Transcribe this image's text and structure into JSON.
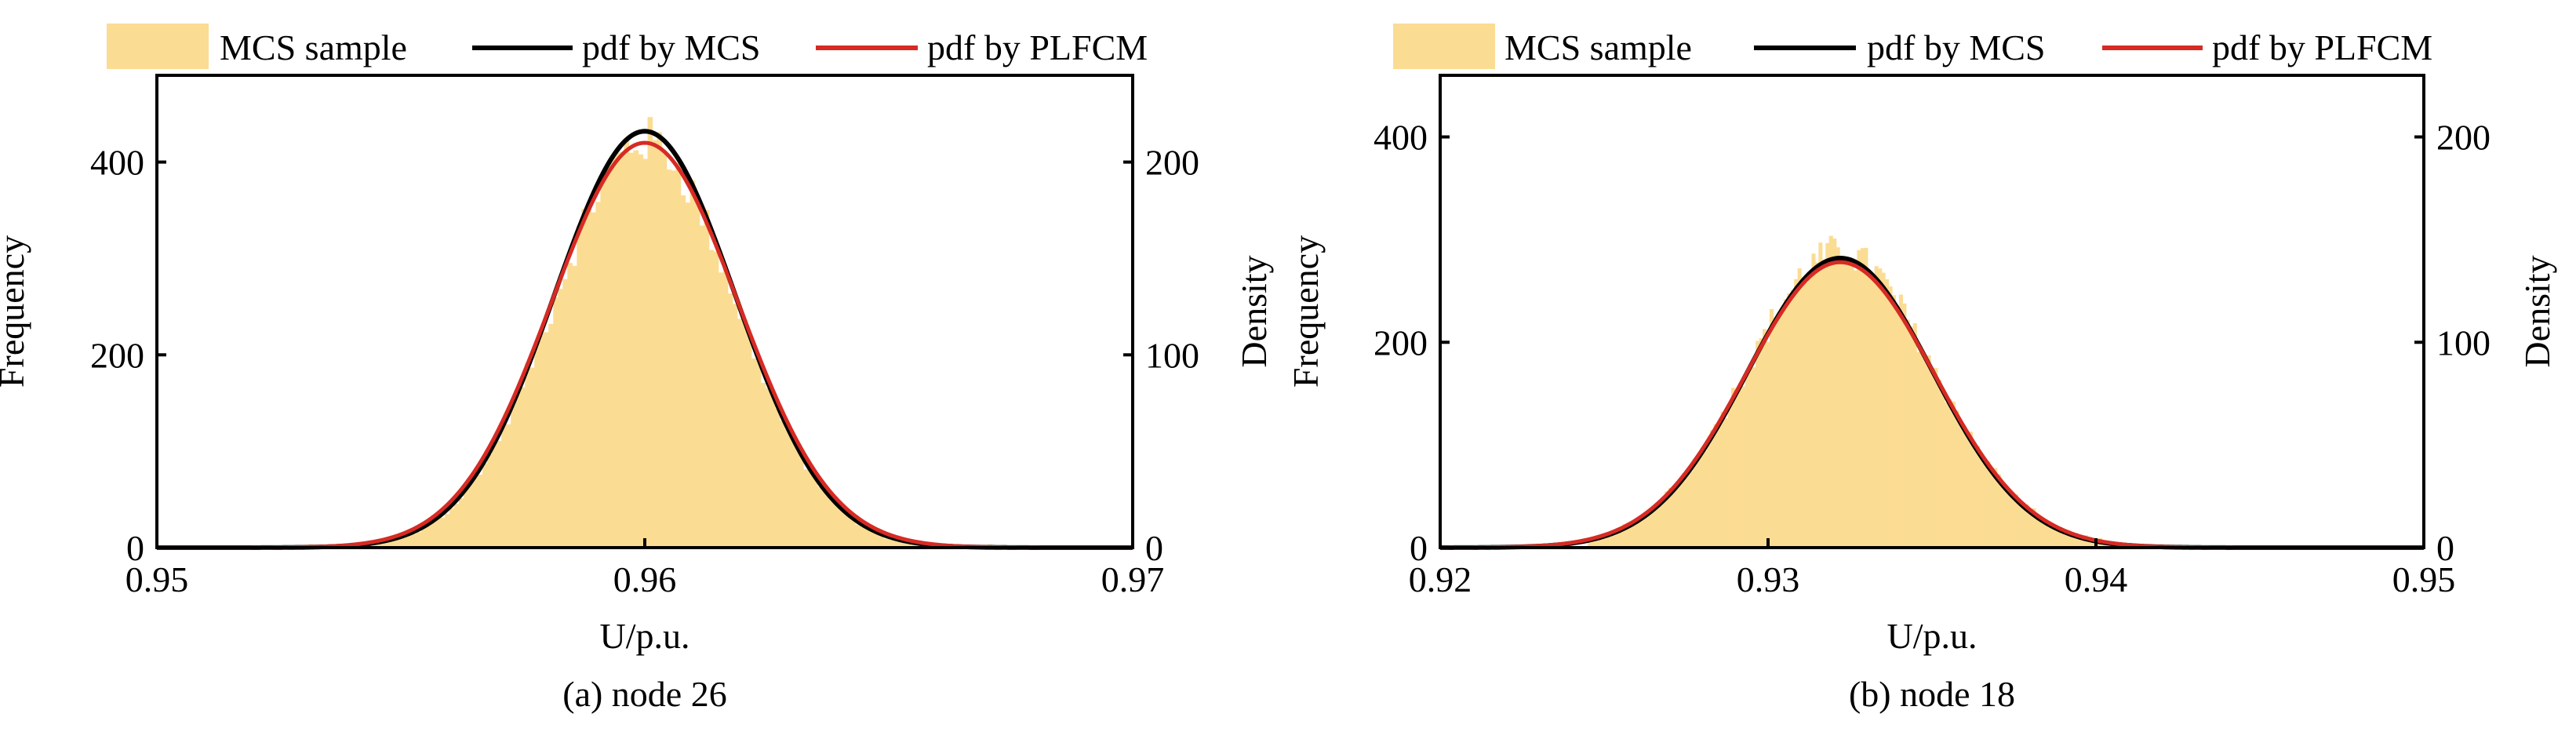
{
  "colors": {
    "hist_fill": "#fbdc93",
    "pdf_mcs": "#000000",
    "pdf_plfcm": "#d62b24",
    "axis": "#000000"
  },
  "legend": {
    "sample_label": "MCS sample",
    "mcs_label": "pdf by MCS",
    "plfcm_label": "pdf by PLFCM"
  },
  "chart_data": [
    {
      "type": "bar",
      "caption": "(a) node 26",
      "xlabel": "U/p.u.",
      "ylabel": "Frequency",
      "y2label": "Density",
      "xlim": [
        0.95,
        0.97
      ],
      "xticks": [
        0.95,
        0.96,
        0.97
      ],
      "xtick_labels": [
        "0.95",
        "0.96",
        "0.97"
      ],
      "ylim": [
        0,
        490
      ],
      "yticks": [
        0,
        200,
        400
      ],
      "ytick_labels": [
        "0",
        "200",
        "400"
      ],
      "y2lim": [
        0,
        245
      ],
      "y2ticks": [
        0,
        100,
        200
      ],
      "y2tick_labels": [
        "0",
        "100",
        "200"
      ],
      "histogram": {
        "min": 0.953,
        "max": 0.9675,
        "bins": 150,
        "peak_frequency": 440,
        "mean": 0.96,
        "std": 0.00185
      },
      "series": [
        {
          "name": "pdf by MCS",
          "mean": 0.96,
          "std": 0.001855,
          "peak_density": 216
        },
        {
          "name": "pdf by PLFCM",
          "mean": 0.96,
          "std": 0.00191,
          "peak_density": 210
        }
      ]
    },
    {
      "type": "bar",
      "caption": "(b) node 18",
      "xlabel": "U/p.u.",
      "ylabel": "Frequency",
      "y2label": "Density",
      "xlim": [
        0.92,
        0.95
      ],
      "xticks": [
        0.92,
        0.93,
        0.94,
        0.95
      ],
      "xtick_labels": [
        "0.92",
        "0.93",
        "0.94",
        "0.95"
      ],
      "ylim": [
        0,
        460
      ],
      "yticks": [
        0,
        200,
        400
      ],
      "ytick_labels": [
        "0",
        "200",
        "400"
      ],
      "y2lim": [
        0,
        230
      ],
      "y2ticks": [
        0,
        100,
        200
      ],
      "y2tick_labels": [
        "0",
        "100",
        "200"
      ],
      "histogram": {
        "min": 0.9245,
        "max": 0.9405,
        "bins": 150,
        "peak_frequency": 300,
        "mean": 0.9322,
        "std": 0.00285
      },
      "series": [
        {
          "name": "pdf by MCS",
          "mean": 0.9322,
          "std": 0.00283,
          "peak_density": 141
        },
        {
          "name": "pdf by PLFCM",
          "mean": 0.9322,
          "std": 0.00288,
          "peak_density": 139
        }
      ]
    }
  ]
}
